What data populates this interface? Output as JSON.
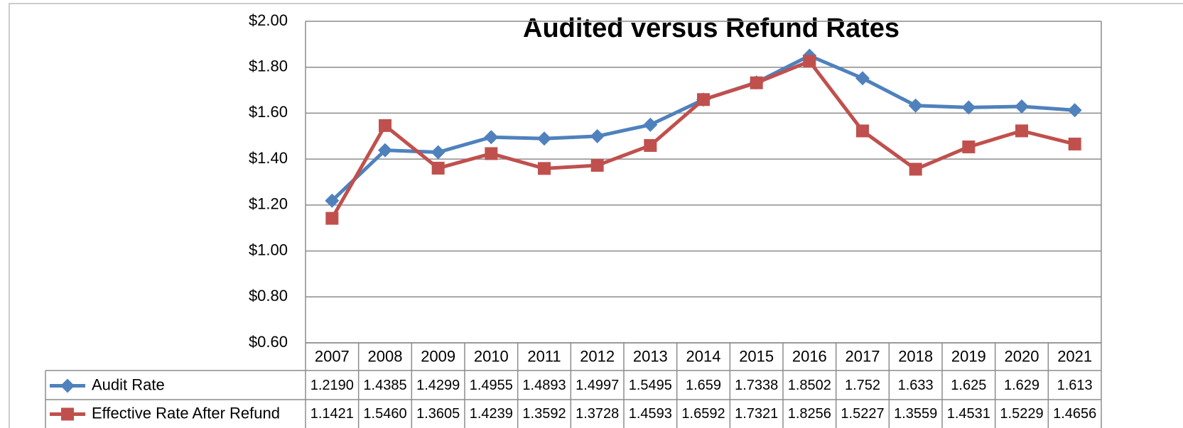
{
  "chart_data": {
    "type": "line",
    "title": "Audited versus Refund Rates",
    "categories": [
      "2007",
      "2008",
      "2009",
      "2010",
      "2011",
      "2012",
      "2013",
      "2014",
      "2015",
      "2016",
      "2017",
      "2018",
      "2019",
      "2020",
      "2021"
    ],
    "series": [
      {
        "name": "Audit Rate",
        "color": "#4f81bd",
        "marker": "diamond",
        "values": [
          1.219,
          1.4385,
          1.4299,
          1.4955,
          1.4893,
          1.4997,
          1.5495,
          1.659,
          1.7338,
          1.8502,
          1.752,
          1.633,
          1.625,
          1.629,
          1.613
        ],
        "value_labels": [
          "1.2190",
          "1.4385",
          "1.4299",
          "1.4955",
          "1.4893",
          "1.4997",
          "1.5495",
          "1.659",
          "1.7338",
          "1.8502",
          "1.752",
          "1.633",
          "1.625",
          "1.629",
          "1.613"
        ]
      },
      {
        "name": "Effective Rate After Refund",
        "color": "#c0504d",
        "marker": "square",
        "values": [
          1.1421,
          1.546,
          1.3605,
          1.4239,
          1.3592,
          1.3728,
          1.4593,
          1.6592,
          1.7321,
          1.8256,
          1.5227,
          1.3559,
          1.4531,
          1.5229,
          1.4656
        ],
        "value_labels": [
          "1.1421",
          "1.5460",
          "1.3605",
          "1.4239",
          "1.3592",
          "1.3728",
          "1.4593",
          "1.6592",
          "1.7321",
          "1.8256",
          "1.5227",
          "1.3559",
          "1.4531",
          "1.5229",
          "1.4656"
        ]
      }
    ],
    "ylim": [
      0.6,
      2.0
    ],
    "yticks": [
      {
        "value": 0.6,
        "label": "$0.60"
      },
      {
        "value": 0.8,
        "label": "$0.80"
      },
      {
        "value": 1.0,
        "label": "$1.00"
      },
      {
        "value": 1.2,
        "label": "$1.20"
      },
      {
        "value": 1.4,
        "label": "$1.40"
      },
      {
        "value": 1.6,
        "label": "$1.60"
      },
      {
        "value": 1.8,
        "label": "$1.80"
      },
      {
        "value": 2.0,
        "label": "$2.00"
      }
    ],
    "grid": true
  }
}
